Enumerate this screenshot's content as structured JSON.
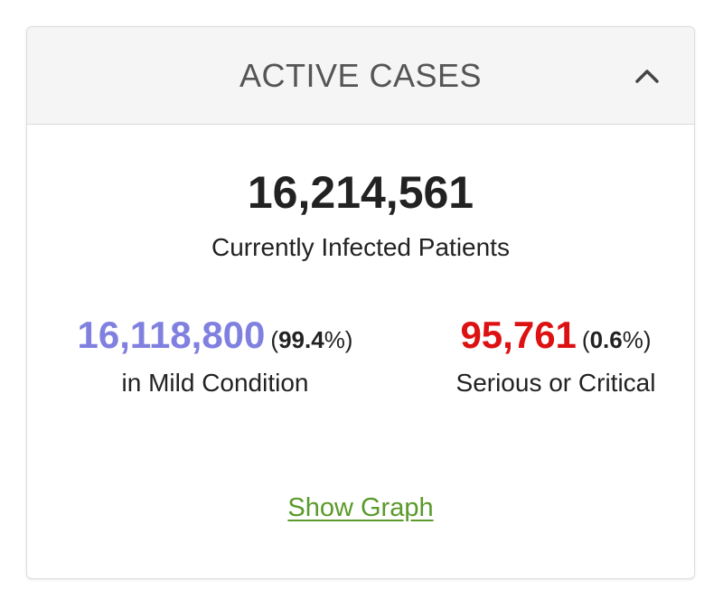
{
  "card": {
    "title": "ACTIVE CASES",
    "collapse_icon": "chevron-up-icon"
  },
  "total": {
    "value": "16,214,561",
    "label": "Currently Infected Patients"
  },
  "mild": {
    "value": "16,118,800",
    "pct_open": "(",
    "pct": "99.4",
    "pct_close": "%)",
    "label": "in Mild Condition",
    "color": "#8080e0"
  },
  "critical": {
    "value": "95,761",
    "pct_open": "(",
    "pct": "0.6",
    "pct_close": "%)",
    "label": "Serious or Critical",
    "color": "#dd1111"
  },
  "show_graph": {
    "label": "Show Graph",
    "color": "#5a9a2a"
  }
}
